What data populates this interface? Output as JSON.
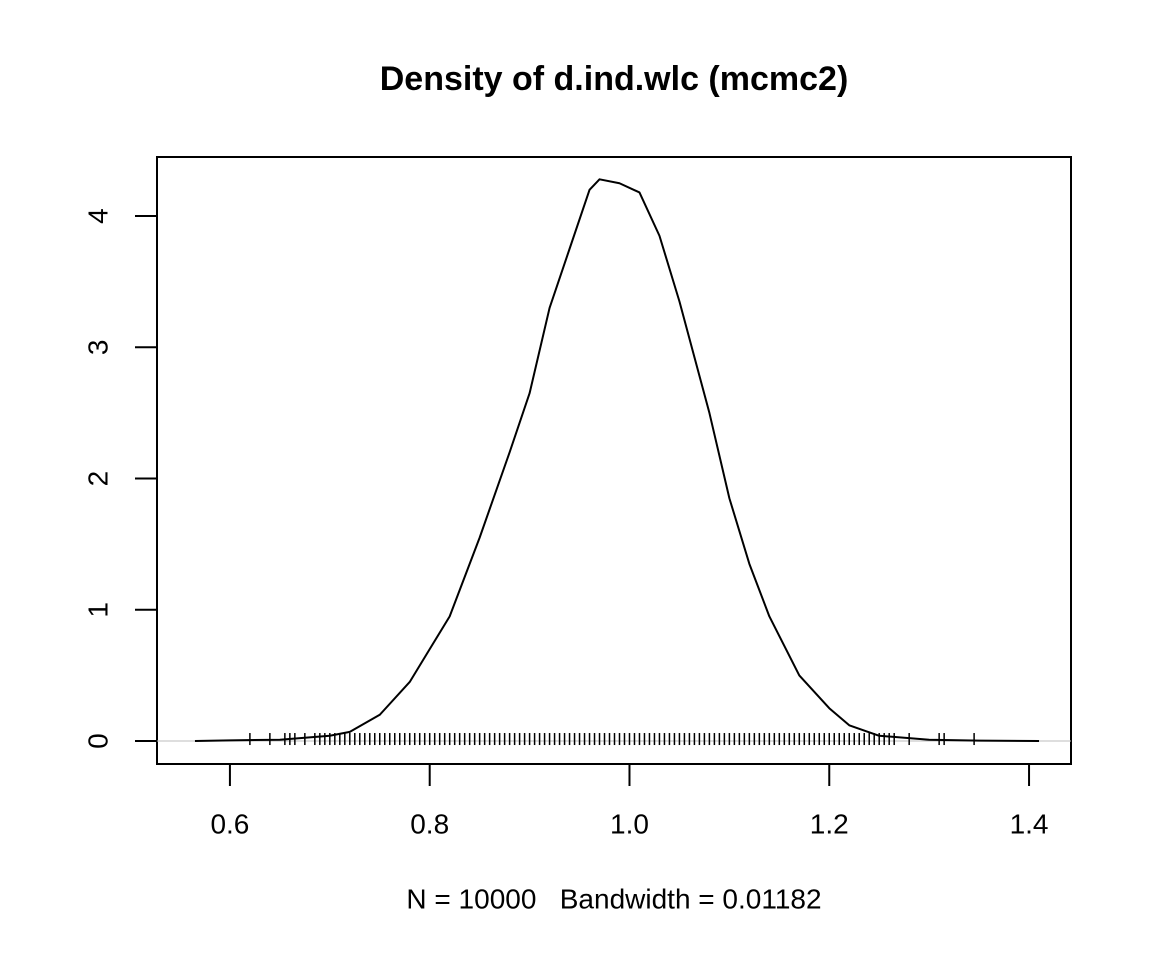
{
  "chart_data": {
    "type": "density",
    "title": "Density of d.ind.wlc (mcmc2)",
    "x_label": "N = 10000   Bandwidth = 0.01182",
    "x": [
      0.565,
      0.6,
      0.65,
      0.7,
      0.72,
      0.75,
      0.78,
      0.8,
      0.82,
      0.85,
      0.88,
      0.9,
      0.92,
      0.94,
      0.96,
      0.97,
      0.99,
      1.01,
      1.03,
      1.05,
      1.08,
      1.1,
      1.12,
      1.14,
      1.17,
      1.2,
      1.22,
      1.25,
      1.3,
      1.35,
      1.41
    ],
    "values": [
      0,
      0.005,
      0.01,
      0.04,
      0.07,
      0.2,
      0.45,
      0.7,
      0.95,
      1.55,
      2.2,
      2.65,
      3.3,
      3.75,
      4.2,
      4.28,
      4.25,
      4.18,
      3.85,
      3.35,
      2.5,
      1.85,
      1.35,
      0.95,
      0.5,
      0.25,
      0.12,
      0.04,
      0.01,
      0.003,
      0
    ],
    "color": "#000000",
    "rug": [
      0.62,
      0.64,
      0.655,
      0.66,
      0.665,
      0.675,
      0.685,
      0.69,
      0.695,
      0.7,
      0.705,
      0.71,
      0.715,
      0.72,
      0.725,
      0.73,
      0.735,
      0.74,
      0.745,
      0.75,
      0.755,
      0.76,
      0.765,
      0.77,
      0.775,
      0.78,
      0.785,
      0.79,
      0.795,
      0.8,
      0.805,
      0.81,
      0.815,
      0.82,
      0.825,
      0.83,
      0.835,
      0.84,
      0.845,
      0.85,
      0.855,
      0.86,
      0.865,
      0.87,
      0.875,
      0.88,
      0.885,
      0.89,
      0.895,
      0.9,
      0.905,
      0.91,
      0.915,
      0.92,
      0.925,
      0.93,
      0.935,
      0.94,
      0.945,
      0.95,
      0.955,
      0.96,
      0.965,
      0.97,
      0.975,
      0.98,
      0.985,
      0.99,
      0.995,
      1.0,
      1.005,
      1.01,
      1.015,
      1.02,
      1.025,
      1.03,
      1.035,
      1.04,
      1.045,
      1.05,
      1.055,
      1.06,
      1.065,
      1.07,
      1.075,
      1.08,
      1.085,
      1.09,
      1.095,
      1.1,
      1.105,
      1.11,
      1.115,
      1.12,
      1.125,
      1.13,
      1.135,
      1.14,
      1.145,
      1.15,
      1.155,
      1.16,
      1.165,
      1.17,
      1.175,
      1.18,
      1.185,
      1.19,
      1.195,
      1.2,
      1.205,
      1.21,
      1.215,
      1.22,
      1.225,
      1.23,
      1.235,
      1.24,
      1.245,
      1.25,
      1.255,
      1.26,
      1.265,
      1.28,
      1.31,
      1.315,
      1.345
    ],
    "zero_line": true,
    "xlim": [
      0.527,
      1.442
    ],
    "ylim": [
      -0.175,
      4.45
    ],
    "xticks": [
      0.6,
      0.8,
      {
        "value": 1,
        "label": "1.0"
      },
      1.2,
      1.4
    ],
    "yticks": [
      0,
      1,
      2,
      3,
      4
    ]
  }
}
